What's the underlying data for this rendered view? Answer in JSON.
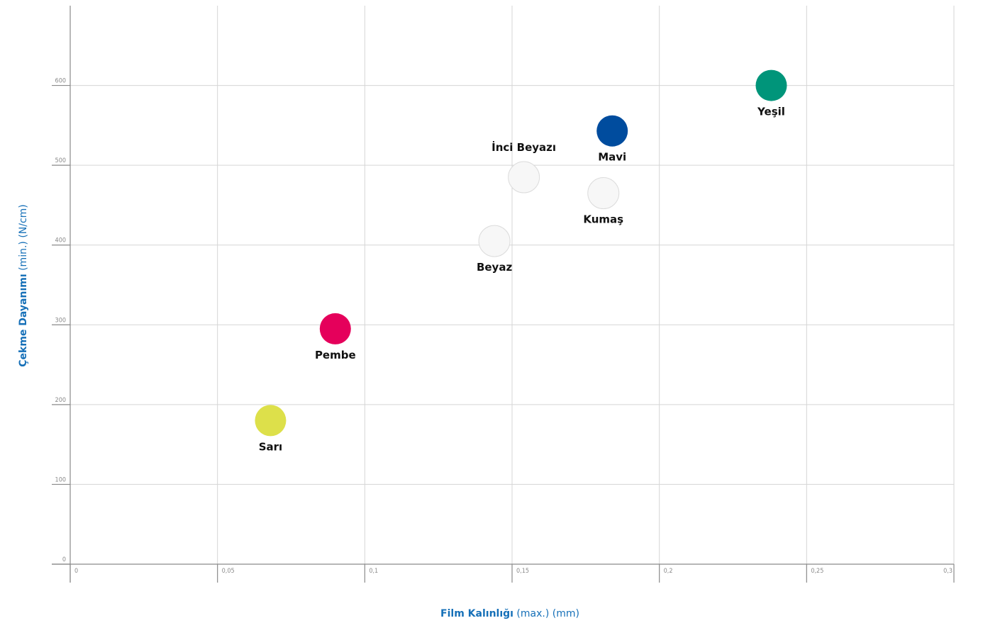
{
  "chart_data": {
    "type": "scatter",
    "title": "",
    "xlabel_bold": "Film Kalınlığı",
    "xlabel_rest": " (max.) (mm)",
    "ylabel_bold": "Çekme Dayanımı",
    "ylabel_rest": " (min.) (N/cm)",
    "xlim": [
      0,
      0.3
    ],
    "ylim": [
      0,
      700
    ],
    "x_ticks": [
      {
        "value": 0,
        "label": "0"
      },
      {
        "value": 0.05,
        "label": "0,05"
      },
      {
        "value": 0.1,
        "label": "0,1"
      },
      {
        "value": 0.15,
        "label": "0,15"
      },
      {
        "value": 0.2,
        "label": "0,2"
      },
      {
        "value": 0.25,
        "label": "0,25"
      },
      {
        "value": 0.3,
        "label": "0,3"
      }
    ],
    "y_ticks": [
      {
        "value": 0,
        "label": "0"
      },
      {
        "value": 100,
        "label": "100"
      },
      {
        "value": 200,
        "label": "200"
      },
      {
        "value": 300,
        "label": "300"
      },
      {
        "value": 400,
        "label": "400"
      },
      {
        "value": 500,
        "label": "500"
      },
      {
        "value": 600,
        "label": "600"
      }
    ],
    "grid": true,
    "points": [
      {
        "label": "Sarı",
        "x": 0.068,
        "y": 180,
        "color": "#dde04a",
        "label_position": "below"
      },
      {
        "label": "Pembe",
        "x": 0.09,
        "y": 295,
        "color": "#e5005b",
        "label_position": "below"
      },
      {
        "label": "Beyaz",
        "x": 0.144,
        "y": 405,
        "color": "#f7f7f7",
        "label_position": "below"
      },
      {
        "label": "İnci Beyazı",
        "x": 0.154,
        "y": 485,
        "color": "#f7f7f7",
        "label_position": "above"
      },
      {
        "label": "Kumaş",
        "x": 0.181,
        "y": 465,
        "color": "#f7f7f7",
        "label_position": "below"
      },
      {
        "label": "Mavi",
        "x": 0.184,
        "y": 543,
        "color": "#004c9e",
        "label_position": "below"
      },
      {
        "label": "Yeşil",
        "x": 0.238,
        "y": 600,
        "color": "#00957a",
        "label_position": "below"
      }
    ]
  },
  "colors": {
    "axis_title": "#1670b8",
    "grid": "#d5d5d5",
    "axis": "#8a8a8a",
    "point_outline": "#dcdcdc"
  }
}
